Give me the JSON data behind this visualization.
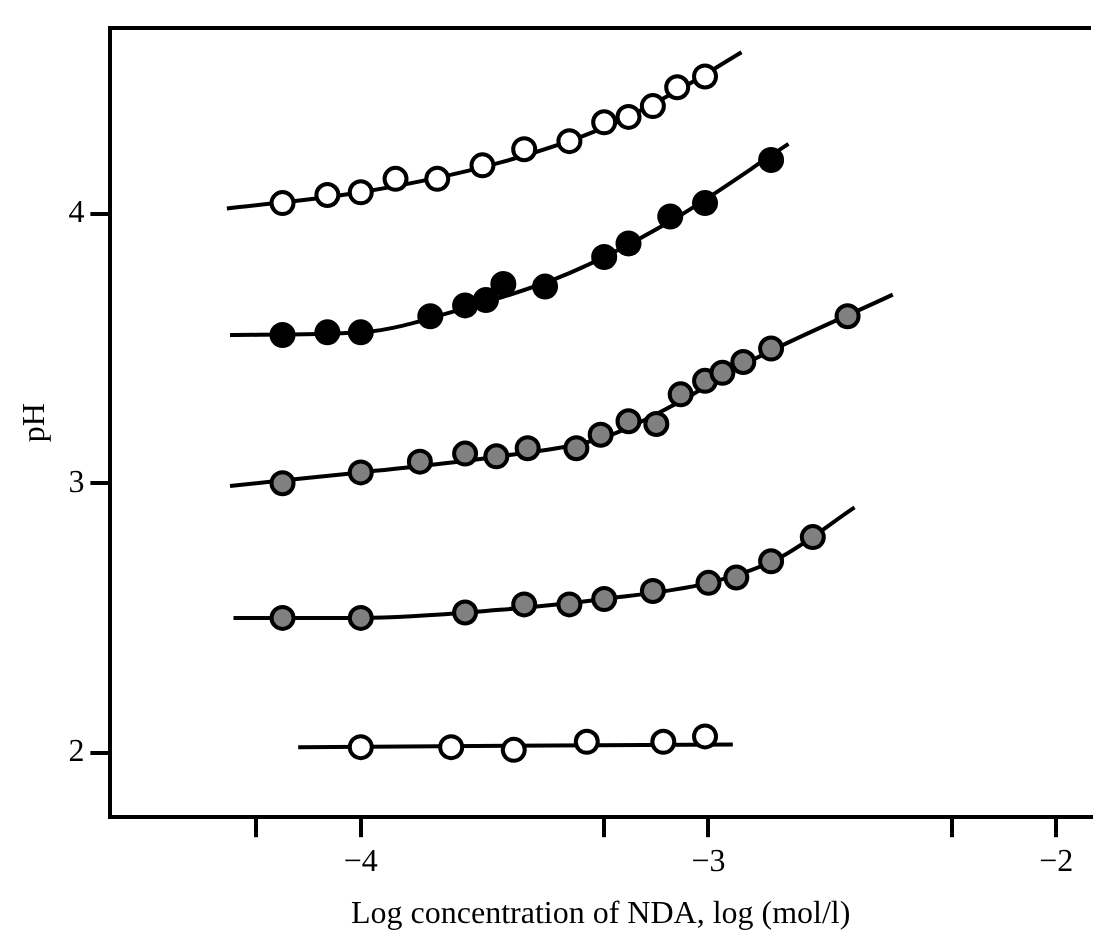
{
  "chart_data": {
    "type": "scatter",
    "xlabel": "Log concentration of NDA, log (mol/l)",
    "ylabel": "pH",
    "xlim": [
      -4.72,
      -1.9
    ],
    "ylim": [
      1.76,
      4.69
    ],
    "xticks": [
      {
        "value": -4.301,
        "label": null
      },
      -4,
      {
        "value": -3.301,
        "label": null
      },
      -3,
      {
        "value": -2.301,
        "label": null
      },
      -2
    ],
    "yticks": [
      2,
      3,
      4
    ],
    "grid": false,
    "legend": false,
    "marker": "circle",
    "series": [
      {
        "type": "line",
        "color": "#000000",
        "marker": "none",
        "x": [
          -4.385,
          -4.0,
          -3.6,
          -3.3,
          -3.1,
          -2.905
        ],
        "values": [
          4.02,
          4.08,
          4.19,
          4.32,
          4.45,
          4.6
        ]
      },
      {
        "type": "line",
        "color": "#000000",
        "marker": "none",
        "x": [
          -4.376,
          -4.0,
          -3.7,
          -3.4,
          -3.1,
          -2.77
        ],
        "values": [
          3.55,
          3.56,
          3.65,
          3.78,
          3.98,
          4.26
        ]
      },
      {
        "type": "line",
        "color": "#000000",
        "marker": "none",
        "x": [
          -4.376,
          -4.0,
          -3.6,
          -3.3,
          -3.1,
          -2.9,
          -2.47
        ],
        "values": [
          2.99,
          3.04,
          3.1,
          3.17,
          3.29,
          3.44,
          3.7
        ]
      },
      {
        "type": "line",
        "color": "#000000",
        "marker": "none",
        "x": [
          -4.366,
          -4.0,
          -3.6,
          -3.3,
          -3.0,
          -2.8,
          -2.58
        ],
        "values": [
          2.5,
          2.5,
          2.53,
          2.57,
          2.63,
          2.72,
          2.91
        ]
      },
      {
        "type": "line",
        "color": "#000000",
        "marker": "none",
        "x": [
          -4.18,
          -2.93
        ],
        "values": [
          2.02,
          2.03
        ]
      },
      {
        "color": "#ffffff",
        "x": [
          -4.225,
          -4.096,
          -4.0,
          -3.9,
          -3.78,
          -3.65,
          -3.53,
          -3.4,
          -3.3,
          -3.23,
          -3.16,
          -3.09,
          -3.01
        ],
        "values": [
          4.04,
          4.07,
          4.08,
          4.13,
          4.13,
          4.18,
          4.24,
          4.27,
          4.34,
          4.36,
          4.4,
          4.47,
          4.51
        ]
      },
      {
        "color": "#000000",
        "x": [
          -4.225,
          -4.096,
          -4.0,
          -3.8,
          -3.7,
          -3.64,
          -3.59,
          -3.47,
          -3.3,
          -3.23,
          -3.11,
          -3.01,
          -2.82
        ],
        "values": [
          3.55,
          3.56,
          3.56,
          3.62,
          3.66,
          3.68,
          3.74,
          3.73,
          3.84,
          3.89,
          3.99,
          4.04,
          4.2
        ]
      },
      {
        "color": "#808080",
        "x": [
          -4.225,
          -4.0,
          -3.83,
          -3.7,
          -3.61,
          -3.52,
          -3.38,
          -3.31,
          -3.23,
          -3.15,
          -3.08,
          -3.01,
          -2.96,
          -2.9,
          -2.82,
          -2.6
        ],
        "values": [
          3.0,
          3.04,
          3.08,
          3.11,
          3.1,
          3.13,
          3.13,
          3.18,
          3.23,
          3.22,
          3.33,
          3.38,
          3.41,
          3.45,
          3.5,
          3.62
        ]
      },
      {
        "color": "#808080",
        "x": [
          -4.225,
          -4.0,
          -3.7,
          -3.53,
          -3.4,
          -3.3,
          -3.16,
          -3.0,
          -2.92,
          -2.82,
          -2.7
        ],
        "values": [
          2.5,
          2.5,
          2.52,
          2.55,
          2.55,
          2.57,
          2.6,
          2.63,
          2.65,
          2.71,
          2.8
        ]
      },
      {
        "color": "#ffffff",
        "x": [
          -4.0,
          -3.74,
          -3.56,
          -3.35,
          -3.13,
          -3.01
        ],
        "values": [
          2.02,
          2.02,
          2.01,
          2.04,
          2.04,
          2.06
        ]
      }
    ]
  }
}
